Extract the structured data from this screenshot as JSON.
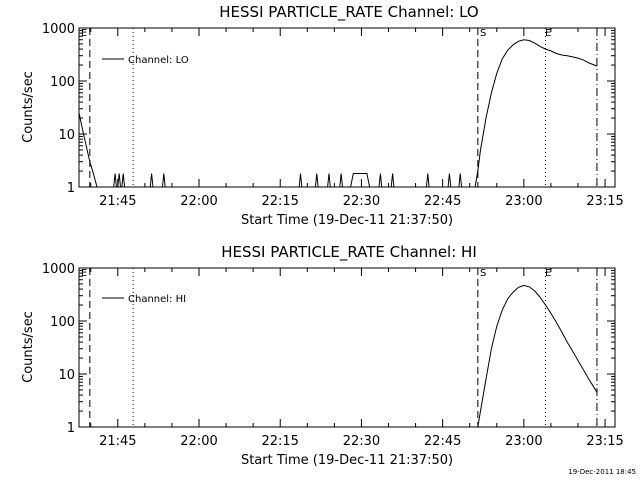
{
  "footer": {
    "timestamp": "19-Dec-2011 18:45"
  },
  "chart_data": [
    {
      "type": "line",
      "title": "HESSI PARTICLE_RATE Channel: LO",
      "xlabel": "Start Time (19-Dec-11 21:37:50)",
      "ylabel": "Counts/sec",
      "y_scale": "log",
      "ylim": [
        1,
        1000
      ],
      "xlim": [
        "21:37:50",
        "23:16:50"
      ],
      "x_ticks": [
        "21:45",
        "22:00",
        "22:15",
        "22:30",
        "22:45",
        "23:00",
        "23:15"
      ],
      "y_ticks": [
        "1",
        "10",
        "100",
        "1000"
      ],
      "legend": {
        "position": "top-left",
        "entries": [
          "Channel: LO"
        ]
      },
      "markers": {
        "left_label": "E",
        "start_label": "S",
        "end_label": "E"
      },
      "vertical_lines": [
        {
          "x": "21:39:50",
          "style": "dashed"
        },
        {
          "x": "21:47:50",
          "style": "dotted"
        },
        {
          "x": "22:51:30",
          "style": "dashed"
        },
        {
          "x": "23:04:00",
          "style": "dotted"
        },
        {
          "x": "23:13:30",
          "style": "dash-dot"
        }
      ],
      "series": [
        {
          "segments": [
            [
              [
                "21:37:50",
                25
              ],
              [
                "21:38:30",
                12
              ],
              [
                "21:39:10",
                6
              ],
              [
                "21:39:50",
                3
              ],
              [
                "21:40:30",
                1.8
              ],
              [
                "21:41:10",
                1
              ]
            ],
            [
              [
                "21:44:15",
                1
              ],
              [
                "21:44:30",
                1.8
              ],
              [
                "21:44:45",
                1
              ]
            ],
            [
              [
                "21:45:00",
                1
              ],
              [
                "21:45:15",
                1.8
              ],
              [
                "21:45:30",
                1
              ]
            ],
            [
              [
                "21:45:45",
                1
              ],
              [
                "21:46:00",
                1.8
              ],
              [
                "21:46:15",
                1
              ]
            ],
            [
              [
                "21:51:00",
                1
              ],
              [
                "21:51:15",
                1.8
              ],
              [
                "21:51:30",
                1
              ]
            ],
            [
              [
                "21:53:15",
                1
              ],
              [
                "21:53:30",
                1.8
              ],
              [
                "21:53:45",
                1
              ]
            ],
            [
              [
                "22:18:30",
                1
              ],
              [
                "22:18:45",
                1.8
              ],
              [
                "22:19:00",
                1
              ]
            ],
            [
              [
                "22:21:30",
                1
              ],
              [
                "22:21:45",
                1.8
              ],
              [
                "22:22:00",
                1
              ]
            ],
            [
              [
                "22:23:45",
                1
              ],
              [
                "22:24:00",
                1.8
              ],
              [
                "22:24:15",
                1
              ]
            ],
            [
              [
                "22:26:00",
                1
              ],
              [
                "22:26:15",
                1.8
              ],
              [
                "22:26:30",
                1
              ]
            ],
            [
              [
                "22:28:00",
                1
              ],
              [
                "22:28:30",
                1.8
              ],
              [
                "22:31:00",
                1.8
              ],
              [
                "22:31:30",
                1
              ]
            ],
            [
              [
                "22:33:15",
                1
              ],
              [
                "22:33:30",
                1.8
              ],
              [
                "22:33:45",
                1
              ]
            ],
            [
              [
                "22:35:30",
                1
              ],
              [
                "22:35:45",
                1.8
              ],
              [
                "22:36:00",
                1
              ]
            ],
            [
              [
                "22:42:00",
                1
              ],
              [
                "22:42:15",
                1.8
              ],
              [
                "22:42:30",
                1
              ]
            ],
            [
              [
                "22:46:00",
                1
              ],
              [
                "22:46:15",
                1.8
              ],
              [
                "22:46:30",
                1
              ]
            ],
            [
              [
                "22:48:00",
                1
              ],
              [
                "22:48:15",
                1.8
              ],
              [
                "22:48:30",
                1
              ]
            ],
            [
              [
                "22:51:00",
                1
              ],
              [
                "22:51:30",
                2
              ],
              [
                "22:52:00",
                5
              ],
              [
                "22:53:00",
                20
              ],
              [
                "22:54:00",
                60
              ],
              [
                "22:55:00",
                140
              ],
              [
                "22:56:00",
                260
              ],
              [
                "22:57:00",
                380
              ],
              [
                "22:58:00",
                480
              ],
              [
                "22:59:00",
                560
              ],
              [
                "23:00:00",
                600
              ],
              [
                "23:01:00",
                580
              ],
              [
                "23:02:00",
                520
              ],
              [
                "23:03:00",
                450
              ],
              [
                "23:04:00",
                400
              ],
              [
                "23:05:00",
                370
              ],
              [
                "23:06:00",
                330
              ],
              [
                "23:07:00",
                310
              ],
              [
                "23:08:00",
                300
              ],
              [
                "23:09:00",
                285
              ],
              [
                "23:10:00",
                270
              ],
              [
                "23:11:00",
                250
              ],
              [
                "23:12:00",
                220
              ],
              [
                "23:13:00",
                200
              ],
              [
                "23:13:30",
                190
              ]
            ]
          ]
        }
      ]
    },
    {
      "type": "line",
      "title": "HESSI PARTICLE_RATE Channel: HI",
      "xlabel": "Start Time (19-Dec-11 21:37:50)",
      "ylabel": "Counts/sec",
      "y_scale": "log",
      "ylim": [
        1,
        1000
      ],
      "xlim": [
        "21:37:50",
        "23:16:50"
      ],
      "x_ticks": [
        "21:45",
        "22:00",
        "22:15",
        "22:30",
        "22:45",
        "23:00",
        "23:15"
      ],
      "y_ticks": [
        "1",
        "10",
        "100",
        "1000"
      ],
      "legend": {
        "position": "top-left",
        "entries": [
          "Channel: HI"
        ]
      },
      "markers": {
        "left_label": "E",
        "start_label": "S",
        "end_label": "E"
      },
      "vertical_lines": [
        {
          "x": "21:39:50",
          "style": "dashed"
        },
        {
          "x": "21:47:50",
          "style": "dotted"
        },
        {
          "x": "22:51:30",
          "style": "dashed"
        },
        {
          "x": "23:04:00",
          "style": "dotted"
        },
        {
          "x": "23:13:30",
          "style": "dash-dot"
        }
      ],
      "series": [
        {
          "segments": [
            [
              [
                "22:51:30",
                1
              ],
              [
                "22:52:00",
                2
              ],
              [
                "22:53:00",
                8
              ],
              [
                "22:54:00",
                30
              ],
              [
                "22:55:00",
                80
              ],
              [
                "22:56:00",
                160
              ],
              [
                "22:57:00",
                260
              ],
              [
                "22:58:00",
                350
              ],
              [
                "22:59:00",
                430
              ],
              [
                "23:00:00",
                470
              ],
              [
                "23:01:00",
                440
              ],
              [
                "23:02:00",
                370
              ],
              [
                "23:03:00",
                280
              ],
              [
                "23:04:00",
                200
              ],
              [
                "23:05:00",
                140
              ],
              [
                "23:06:00",
                95
              ],
              [
                "23:07:00",
                62
              ],
              [
                "23:08:00",
                40
              ],
              [
                "23:09:00",
                27
              ],
              [
                "23:10:00",
                18
              ],
              [
                "23:11:00",
                12
              ],
              [
                "23:12:00",
                8
              ],
              [
                "23:13:00",
                5.5
              ],
              [
                "23:13:30",
                4.5
              ]
            ]
          ]
        }
      ]
    }
  ]
}
